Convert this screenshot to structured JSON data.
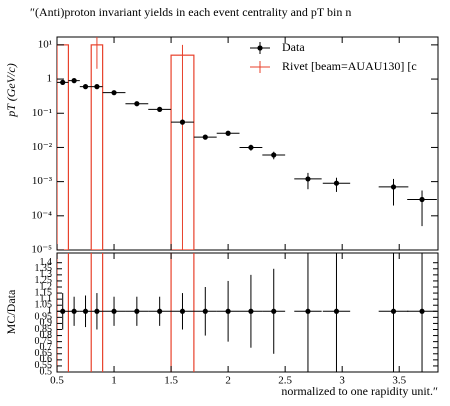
{
  "chart_data": {
    "type": "rivet",
    "title": "″(Anti)proton invariant yields in each event centrality and pT bin n",
    "x_label": "normalized to one rapidity unit.″",
    "y_label": "pT (GeV/c)",
    "ratio_label": "MC/Data",
    "log_y": true,
    "xlim": [
      0.5,
      3.84
    ],
    "xticks": [
      0.5,
      1,
      1.5,
      2,
      2.5,
      3,
      3.5
    ],
    "ylim": [
      1e-05,
      17
    ],
    "yticks": [
      {
        "value": 10,
        "label": "10¹"
      },
      1,
      {
        "value": 0.1,
        "label": "10⁻¹"
      },
      {
        "value": 0.01,
        "label": "10⁻²"
      },
      {
        "value": 0.001,
        "label": "10⁻³"
      },
      {
        "value": 0.0001,
        "label": "10⁻⁴"
      },
      {
        "value": 1e-05,
        "label": "10⁻⁵"
      }
    ],
    "ratio_ylim": [
      0.5,
      1.48
    ],
    "ratio_yticks": [
      1.4,
      1.35,
      1.3,
      1.25,
      1.2,
      1.15,
      1.1,
      1.05,
      1,
      0.95,
      0.9,
      0.85,
      0.8,
      0.75,
      0.7,
      0.65,
      0.6,
      0.55,
      0.5
    ],
    "data": {
      "name": "Data",
      "color": "#000000",
      "x": [
        0.55,
        0.65,
        0.75,
        0.85,
        1.0,
        1.2,
        1.4,
        1.6,
        1.8,
        2.0,
        2.2,
        2.4,
        2.7,
        2.95,
        3.45,
        3.7
      ],
      "x_err": [
        0.05,
        0.05,
        0.05,
        0.05,
        0.1,
        0.1,
        0.1,
        0.1,
        0.1,
        0.1,
        0.1,
        0.1,
        0.12,
        0.12,
        0.13,
        0.13
      ],
      "values": [
        0.8,
        0.9,
        0.6,
        0.6,
        0.4,
        0.19,
        0.13,
        0.055,
        0.02,
        0.026,
        0.01,
        0.006,
        0.0012,
        0.0009,
        0.0007,
        0.0003
      ],
      "errors": [
        0.08,
        0.09,
        0.06,
        0.06,
        0.04,
        0.02,
        0.013,
        0.006,
        0.003,
        0.004,
        0.002,
        0.0015,
        0.0006,
        0.0004,
        0.0005,
        0.00025
      ],
      "ratio": [
        1,
        1,
        1,
        1,
        1,
        1,
        1,
        1,
        1,
        1,
        1,
        1,
        1,
        1,
        1,
        1
      ],
      "ratio_errors": [
        0.15,
        0.12,
        0.13,
        0.15,
        0.12,
        0.12,
        0.12,
        0.15,
        0.2,
        0.25,
        0.3,
        0.35,
        0.6,
        0.6,
        0.6,
        0.6
      ]
    },
    "mc": {
      "name": "Rivet [beam=AUAU130] [c",
      "color": "#e8412b",
      "bins": [
        0.5,
        0.6,
        0.8,
        0.9,
        1.5,
        1.7
      ],
      "values": [
        10,
        0,
        10,
        0,
        5
      ],
      "errors": [
        0,
        0,
        8,
        0,
        5
      ]
    },
    "legend": "upper right"
  }
}
